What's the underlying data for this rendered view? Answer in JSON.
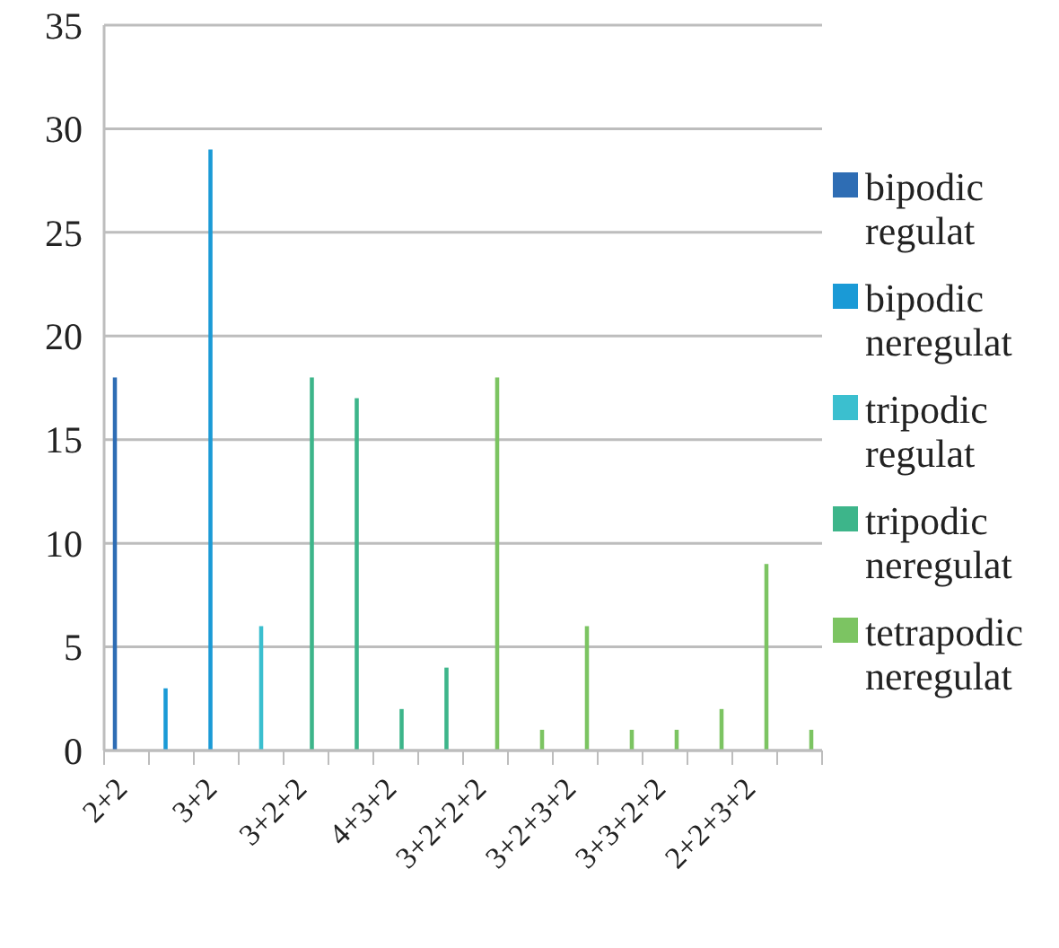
{
  "chart_data": {
    "type": "bar",
    "categories": [
      "2+2",
      null,
      "3+2",
      null,
      "3+2+2",
      null,
      "4+3+2",
      null,
      "3+2+2+2",
      null,
      "3+2+3+2",
      null,
      "3+3+2+2",
      null,
      "2+2+3+2",
      null
    ],
    "series": [
      {
        "name": "bipodic regulat",
        "color": "#2e6db4",
        "values": [
          18,
          null,
          null,
          null,
          null,
          null,
          null,
          null,
          null,
          null,
          null,
          null,
          null,
          null,
          null,
          null
        ]
      },
      {
        "name": "bipodic neregulat",
        "color": "#1a9ad6",
        "values": [
          null,
          3,
          29,
          null,
          null,
          null,
          null,
          null,
          null,
          null,
          null,
          null,
          null,
          null,
          null,
          null
        ]
      },
      {
        "name": "tripodic regulat",
        "color": "#3bbfcf",
        "values": [
          null,
          null,
          null,
          6,
          null,
          null,
          null,
          null,
          null,
          null,
          null,
          null,
          null,
          null,
          null,
          null
        ]
      },
      {
        "name": "tripodic neregulat",
        "color": "#3db58a",
        "values": [
          null,
          null,
          null,
          null,
          18,
          17,
          2,
          4,
          null,
          null,
          null,
          null,
          null,
          null,
          null,
          null
        ]
      },
      {
        "name": "tetrapodic neregulat",
        "color": "#7cc462",
        "values": [
          null,
          null,
          null,
          null,
          null,
          null,
          null,
          null,
          18,
          1,
          6,
          1,
          1,
          2,
          9,
          1
        ]
      }
    ],
    "ylim": [
      0,
      35
    ],
    "yticks": [
      0,
      5,
      10,
      15,
      20,
      25,
      30,
      35
    ],
    "grid": "y",
    "legend": "right"
  }
}
